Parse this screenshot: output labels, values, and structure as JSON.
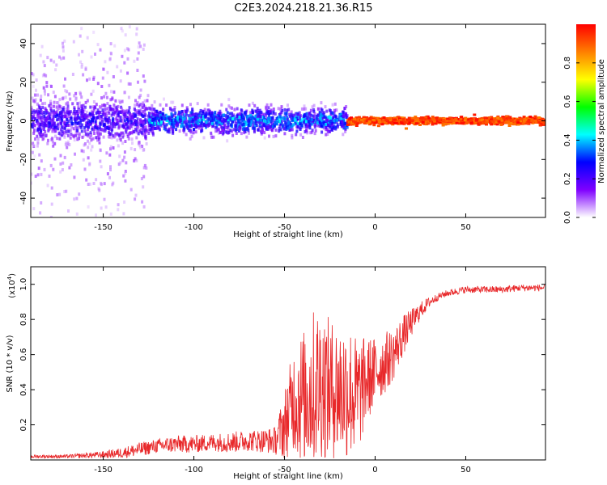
{
  "title": "C2E3.2024.218.21.36.R15",
  "chart_data": [
    {
      "type": "heatmap",
      "xlabel": "Height of straight line (km)",
      "ylabel": "Frequency (Hz)",
      "xlim": [
        -190,
        94
      ],
      "ylim": [
        -50,
        50
      ],
      "xticks": [
        -150,
        -100,
        -50,
        0,
        50
      ],
      "yticks": [
        -40,
        -20,
        0,
        20,
        40
      ],
      "grid": false,
      "colorbar": {
        "label": "Normalized spectral amplitude",
        "range": [
          0,
          1
        ],
        "ticks": [
          0.0,
          0.2,
          0.4,
          0.6,
          0.8
        ],
        "colormap": [
          "#ffffff",
          "#7f00ff",
          "#0000ff",
          "#00ffff",
          "#00ff00",
          "#ffff00",
          "#ff7f00",
          "#ff0000"
        ]
      },
      "features": [
        {
          "x_range": [
            -190,
            -125
          ],
          "freq_spread": 48,
          "amplitude": 0.15
        },
        {
          "x_range": [
            -190,
            -125
          ],
          "freq_spread": 10,
          "amplitude": 0.3
        },
        {
          "x_range": [
            -125,
            -15
          ],
          "freq_spread": 6,
          "amplitude": 0.45
        },
        {
          "x_range": [
            -15,
            94
          ],
          "freq_spread": 1.5,
          "amplitude": 1.0
        }
      ]
    },
    {
      "type": "line",
      "xlabel": "Height of straight line (km)",
      "ylabel": "SNR (10 * v/v)",
      "y_multiplier": "(x10",
      "y_multiplier_exp": "4",
      "y_multiplier_close": ")",
      "xlim": [
        -190,
        94
      ],
      "ylim": [
        0,
        1.1
      ],
      "xticks": [
        -150,
        -100,
        -50,
        0,
        50
      ],
      "yticks": [
        0.2,
        0.4,
        0.6,
        0.8,
        1.0
      ],
      "yticklabels": [
        "0.2",
        "0.4",
        "0.6",
        "0.8",
        "1.0"
      ],
      "line_color": "#e8282a",
      "grid": false,
      "series": [
        {
          "x": [
            -190,
            -170,
            -150,
            -140,
            -130,
            -120,
            -110,
            -100,
            -90,
            -80,
            -70,
            -60,
            -55,
            -50,
            -45,
            -40,
            -35,
            -30,
            -25,
            -20,
            -15,
            -10,
            -5,
            0,
            5,
            10,
            15,
            20,
            25,
            30,
            35,
            40,
            50,
            60,
            70,
            80,
            94
          ],
          "values": [
            0.02,
            0.02,
            0.03,
            0.04,
            0.06,
            0.08,
            0.09,
            0.09,
            0.1,
            0.1,
            0.11,
            0.11,
            0.11,
            0.2,
            0.35,
            0.35,
            0.4,
            0.45,
            0.4,
            0.4,
            0.4,
            0.35,
            0.45,
            0.5,
            0.55,
            0.6,
            0.7,
            0.78,
            0.85,
            0.9,
            0.93,
            0.95,
            0.97,
            0.97,
            0.97,
            0.98,
            0.98
          ],
          "noise_amplitude": [
            0.01,
            0.01,
            0.02,
            0.03,
            0.04,
            0.04,
            0.05,
            0.05,
            0.05,
            0.06,
            0.06,
            0.07,
            0.08,
            0.2,
            0.3,
            0.4,
            0.45,
            0.45,
            0.4,
            0.4,
            0.4,
            0.35,
            0.25,
            0.2,
            0.18,
            0.15,
            0.12,
            0.08,
            0.05,
            0.03,
            0.02,
            0.02,
            0.02,
            0.02,
            0.02,
            0.02,
            0.02
          ]
        }
      ]
    }
  ]
}
